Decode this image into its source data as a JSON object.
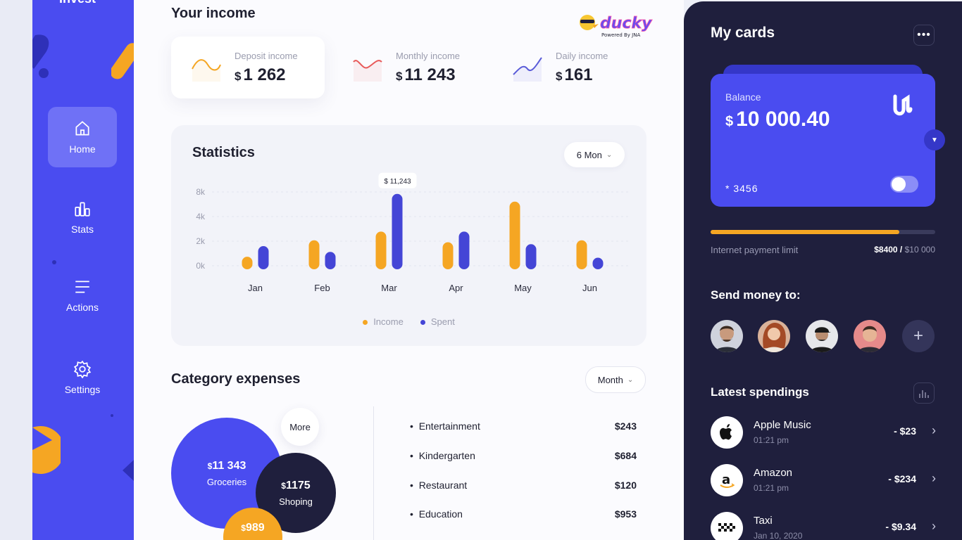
{
  "sidebar": {
    "brand": "Invest",
    "items": [
      {
        "label": "Home",
        "icon": "home-icon"
      },
      {
        "label": "Stats",
        "icon": "stats-icon"
      },
      {
        "label": "Actions",
        "icon": "menu-icon"
      },
      {
        "label": "Settings",
        "icon": "gear-icon"
      }
    ]
  },
  "income": {
    "title": "Your income",
    "currency": "$",
    "cards": [
      {
        "label": "Deposit income",
        "value": "1 262",
        "wave_color": "#f5a623"
      },
      {
        "label": "Monthly income",
        "value": "11 243",
        "wave_color": "#e85a5a"
      },
      {
        "label": "Daily income",
        "value": "161",
        "wave_color": "#5a5cd8"
      }
    ]
  },
  "watermark": {
    "logo_text": "ducky",
    "sub": "Powered By JNA"
  },
  "statistics": {
    "title": "Statistics",
    "period": "6 Mon",
    "tooltip": "$ 11,243"
  },
  "chart_data": {
    "type": "bar",
    "categories": [
      "Jan",
      "Feb",
      "Mar",
      "Apr",
      "May",
      "Jun"
    ],
    "series": [
      {
        "name": "Income",
        "color": "#f5a623",
        "values": [
          1.3,
          3.0,
          3.9,
          2.8,
          7.0,
          3.0
        ]
      },
      {
        "name": "Spent",
        "color": "#4445d6",
        "values": [
          2.4,
          1.8,
          7.8,
          3.9,
          2.6,
          1.2
        ]
      }
    ],
    "yticks": [
      "8k",
      "4k",
      "2k",
      "0k"
    ],
    "ylim": [
      0,
      8
    ],
    "tooltip_category": "Mar",
    "legend": "bottom-center"
  },
  "category": {
    "title": "Category expenses",
    "period": "Month",
    "more": "More",
    "bubbles": [
      {
        "value": "11 343",
        "label": "Groceries",
        "color": "#4a4cf0"
      },
      {
        "value": "1175",
        "label": "Shoping",
        "color": "#1f1f3d"
      },
      {
        "value": "989",
        "label": "",
        "color": "#f5a623"
      }
    ],
    "currency": "$",
    "items": [
      {
        "name": "Entertainment",
        "amount": "$243"
      },
      {
        "name": "Kindergarten",
        "amount": "$684"
      },
      {
        "name": "Restaurant",
        "amount": "$120"
      },
      {
        "name": "Education",
        "amount": "$953"
      }
    ]
  },
  "cards": {
    "title": "My cards",
    "balance_label": "Balance",
    "currency": "$",
    "balance": "10 000.40",
    "card_number": "* 3456",
    "limit_label": "Internet payment limit",
    "limit_used": "8400",
    "limit_total": "10 000",
    "limit_fraction": 0.84
  },
  "send": {
    "title": "Send money to:",
    "contacts": [
      {
        "icon": "avatar-man-beard"
      },
      {
        "icon": "avatar-woman-red-hair"
      },
      {
        "icon": "avatar-man-cap"
      },
      {
        "icon": "avatar-man-pink-bg"
      }
    ],
    "add_icon": "plus-icon"
  },
  "spendings": {
    "title": "Latest spendings",
    "items": [
      {
        "name": "Apple Music",
        "time": "01:21 pm",
        "amount": "- $23",
        "icon": "apple-icon"
      },
      {
        "name": "Amazon",
        "time": "01:21 pm",
        "amount": "- $234",
        "icon": "amazon-icon"
      },
      {
        "name": "Taxi",
        "time": "Jan 10, 2020",
        "amount": "- $9.34",
        "icon": "taxi-icon"
      }
    ]
  }
}
